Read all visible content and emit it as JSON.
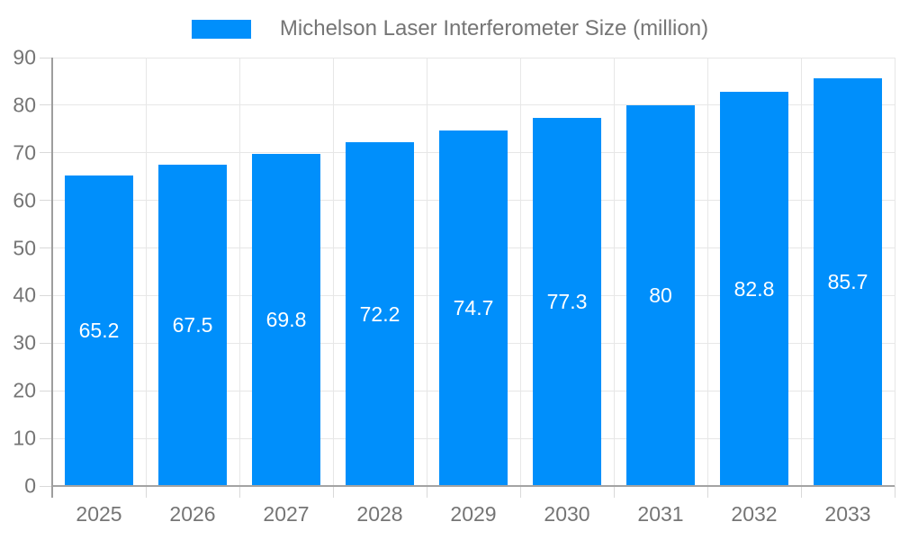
{
  "chart_data": {
    "type": "bar",
    "title": "Michelson Laser Interferometer Size (million)",
    "legend": {
      "position": "top",
      "label": "Michelson Laser Interferometer Size (million)"
    },
    "categories": [
      "2025",
      "2026",
      "2027",
      "2028",
      "2029",
      "2030",
      "2031",
      "2032",
      "2033"
    ],
    "values": [
      65.2,
      67.5,
      69.8,
      72.2,
      74.7,
      77.3,
      80,
      82.8,
      85.7
    ],
    "xlabel": "",
    "ylabel": "",
    "ylim": [
      0,
      90
    ],
    "yticks": [
      0,
      10,
      20,
      30,
      40,
      50,
      60,
      70,
      80,
      90
    ],
    "grid": true,
    "data_label_position": "inside-center",
    "colors": {
      "bar": "#008FFB",
      "data_label": "#FFFFFF",
      "axis_text": "#757575",
      "legend_text": "#757575",
      "gridline": "#E7E7E7",
      "tick": "#D9D9D9",
      "axis_line": "#A3A3A3",
      "background": "#FFFFFF"
    }
  }
}
